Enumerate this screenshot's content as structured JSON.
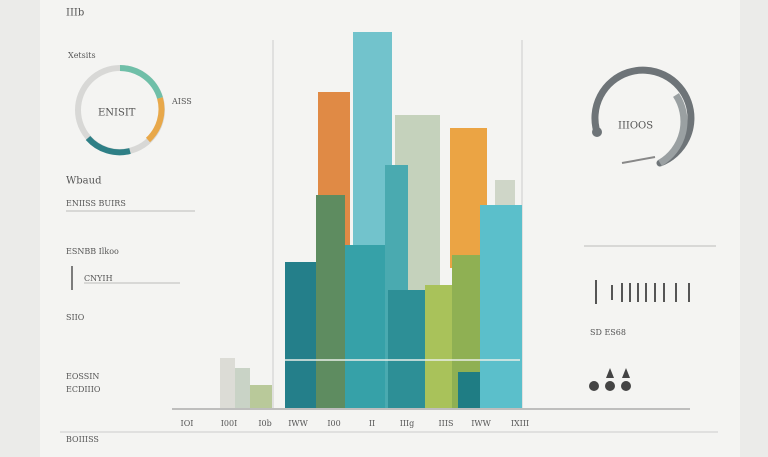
{
  "header": {
    "mark": "IIIb"
  },
  "left": {
    "label": "Xetsits",
    "heading1": "Wbaud",
    "text1": "ENIISS BUIRS",
    "heading2": "ESNBB Ilkoo",
    "text2": "CNYIH",
    "num": "SIIO",
    "foot1": "EOSSIN",
    "foot2": "ECDIIIO"
  },
  "donut": {
    "label": "ENISIT",
    "side": "AISS"
  },
  "gauge": {
    "label": "IIIOOS"
  },
  "right": {
    "code": "SD ES68"
  },
  "axis": {
    "labels": [
      "IOI",
      "I00I",
      "I0b",
      "IWW",
      "I00",
      "II",
      "IIIg",
      "IIIS",
      "IWW",
      "IXIII"
    ]
  },
  "footer": {
    "text": "BOIIISS"
  }
}
